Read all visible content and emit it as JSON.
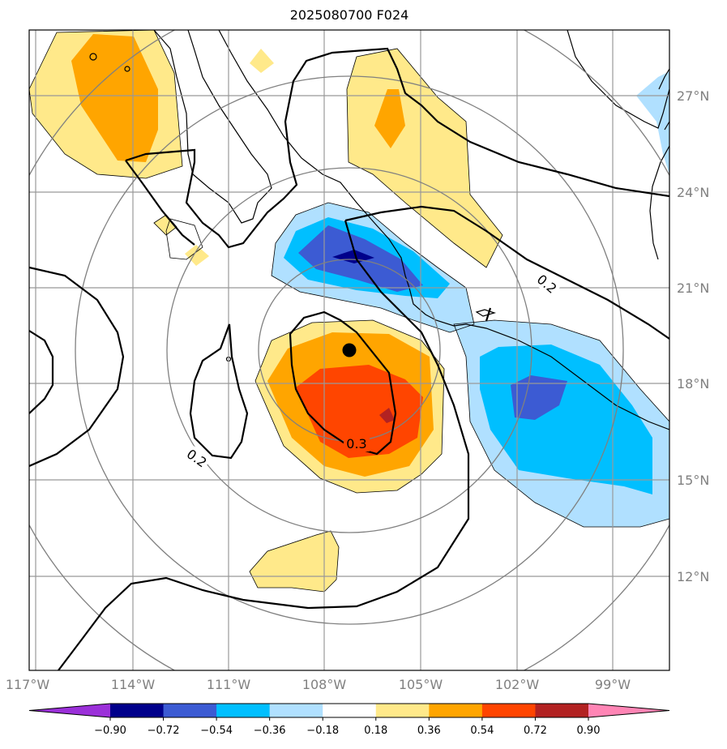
{
  "title": "2025080700 F024",
  "map": {
    "lon_labels": [
      "117°W",
      "114°W",
      "111°W",
      "108°W",
      "105°W",
      "102°W",
      "99°W"
    ],
    "lat_labels": [
      "27°N",
      "24°N",
      "21°N",
      "18°N",
      "15°N",
      "12°N"
    ],
    "contour_labels": [
      "0.2",
      "0.3",
      "0.2"
    ],
    "center_marker": "storm-center"
  },
  "colorbar": {
    "ticks": [
      "−0.90",
      "−0.72",
      "−0.54",
      "−0.36",
      "−0.18",
      "0.18",
      "0.36",
      "0.54",
      "0.72",
      "0.90"
    ],
    "colors": [
      "#9b30d9",
      "#00008b",
      "#3c5bd3",
      "#00bfff",
      "#b0e0ff",
      "#ffffff",
      "#ffe98a",
      "#ffa500",
      "#ff4500",
      "#b22222",
      "#ff85b5"
    ]
  }
}
